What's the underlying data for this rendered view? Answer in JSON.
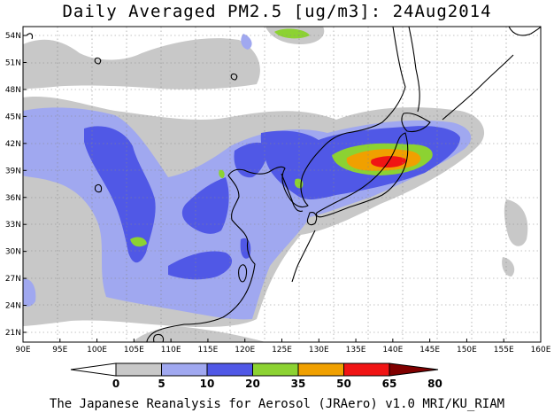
{
  "title": "Daily Averaged PM2.5 [ug/m3]: 24Aug2014",
  "footer": "The Japanese Reanalysis for Aerosol (JRAero) v1.0 MRI/KU_RIAM",
  "map": {
    "lon_ticks": [
      "90E",
      "95E",
      "100E",
      "105E",
      "110E",
      "115E",
      "120E",
      "125E",
      "130E",
      "135E",
      "140E",
      "145E",
      "150E",
      "155E",
      "160E"
    ],
    "lat_ticks": [
      "21N",
      "24N",
      "27N",
      "30N",
      "33N",
      "36N",
      "39N",
      "42N",
      "45N",
      "48N",
      "51N",
      "54N"
    ]
  },
  "colorbar": {
    "labels": [
      "0",
      "5",
      "10",
      "20",
      "35",
      "50",
      "65",
      "80"
    ],
    "colors": [
      "#ffffff",
      "#c8c8c8",
      "#a0a8f0",
      "#5058e6",
      "#8cd232",
      "#f0a000",
      "#f01414",
      "#800000"
    ]
  }
}
